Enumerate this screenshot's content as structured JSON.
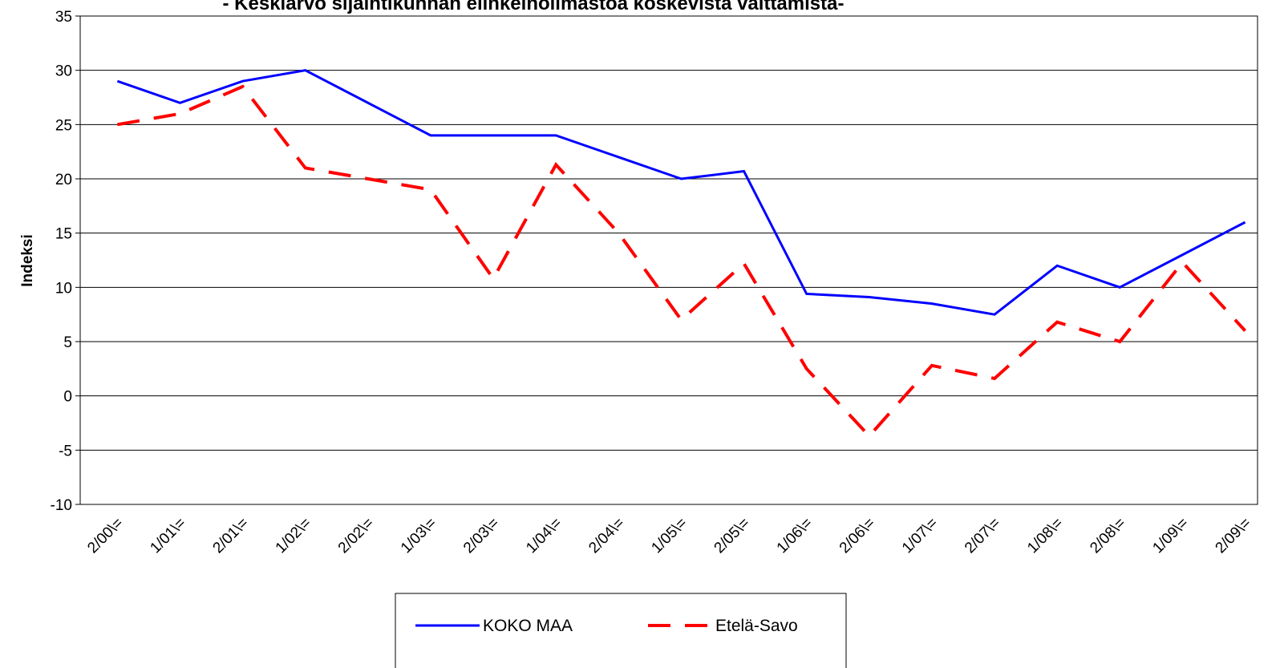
{
  "chart_data": {
    "type": "line",
    "title": "- Keskiarvo sijaintikunnan elinkeinoilmastoa koskevista väittämistä-",
    "ylabel": "Indeksi",
    "categories": [
      "2/00\\=",
      "1/01\\=",
      "2/01\\=",
      "1/02\\=",
      "2/02\\=",
      "1/03\\=",
      "2/03\\=",
      "1/04\\=",
      "2/04\\=",
      "1/05\\=",
      "2/05\\=",
      "1/06\\=",
      "2/06\\=",
      "1/07\\=",
      "2/07\\=",
      "1/08\\=",
      "2/08\\=",
      "1/09\\=",
      "2/09\\="
    ],
    "series": [
      {
        "name": "KOKO MAA",
        "color": "#0000ff",
        "dash": false,
        "values": [
          29,
          27,
          29,
          30,
          27,
          24,
          24,
          24,
          22,
          20,
          20.7,
          9.4,
          9.1,
          8.5,
          7.5,
          12,
          10,
          13,
          16
        ]
      },
      {
        "name": "Etelä-Savo",
        "color": "#ff0000",
        "dash": true,
        "values": [
          25,
          26,
          28.5,
          21,
          20,
          19,
          10.8,
          21.3,
          15,
          7,
          12.2,
          2.5,
          -3.7,
          2.8,
          1.6,
          6.8,
          5,
          12.3,
          6
        ]
      }
    ],
    "ylim": [
      -10,
      35
    ],
    "yticks": [
      -10,
      -5,
      0,
      5,
      10,
      15,
      20,
      25,
      30,
      35
    ],
    "grid": true
  }
}
